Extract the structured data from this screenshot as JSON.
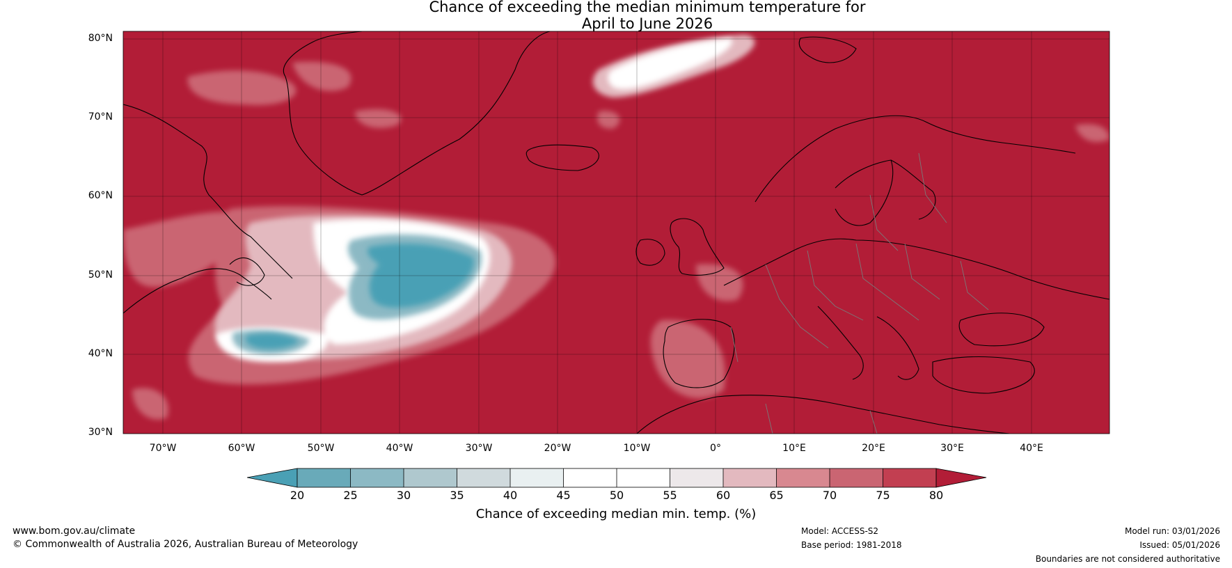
{
  "title": {
    "line1": "Chance of exceeding the median minimum temperature for",
    "line2": "April to June 2026"
  },
  "latitude_labels": [
    "80°N",
    "70°N",
    "60°N",
    "50°N",
    "40°N",
    "30°N"
  ],
  "longitude_labels": [
    "70°W",
    "60°W",
    "50°W",
    "40°W",
    "30°W",
    "20°W",
    "10°W",
    "0°",
    "10°E",
    "20°E",
    "30°E",
    "40°E"
  ],
  "map_extent": {
    "lon_min": -75,
    "lon_max": 50,
    "lat_min": 30,
    "lat_max": 81
  },
  "colorbar": {
    "label": "Chance of exceeding median min. temp. (%)",
    "ticks": [
      "20",
      "25",
      "30",
      "35",
      "40",
      "45",
      "50",
      "55",
      "60",
      "65",
      "70",
      "75",
      "80"
    ],
    "colors": [
      "#4aa0b5",
      "#69aab9",
      "#8cb9c4",
      "#afc8ce",
      "#d0dadd",
      "#e9f0f1",
      "#ffffff",
      "#ffffff",
      "#ede8ea",
      "#e3b9bf",
      "#d88890",
      "#ca6572",
      "#c23f51",
      "#b21d37"
    ]
  },
  "colors": {
    "dominant_fill": "#b21d37",
    "cool_fill": "#4aa0b5",
    "coastline": "#000000",
    "borders": "#7a7a7a"
  },
  "footer": {
    "website": "www.bom.gov.au/climate",
    "copyright": "© Commonwealth of Australia 2026, Australian Bureau of Meteorology",
    "model": "Model: ACCESS-S2",
    "base_period": "Base period: 1981-2018",
    "model_run": "Model run: 03/01/2026",
    "issued": "Issued: 05/01/2026",
    "disclaimer": "Boundaries are not considered authoritative"
  }
}
